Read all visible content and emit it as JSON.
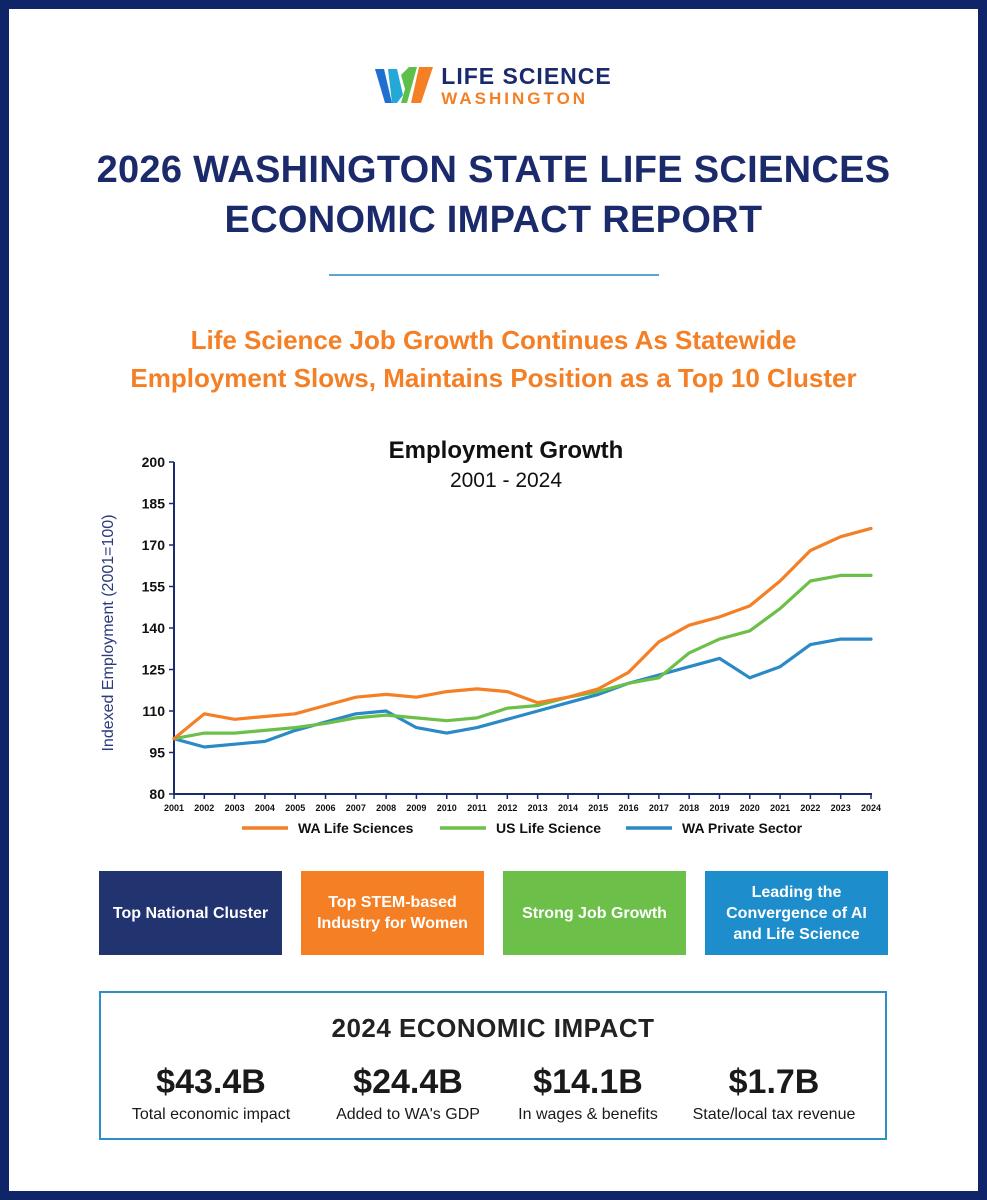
{
  "logo": {
    "line1": "LIFE SCIENCE",
    "line2": "WASHINGTON",
    "mark_colors": [
      "#1f6fd1",
      "#23a8d8",
      "#5cc04a",
      "#f47f24"
    ]
  },
  "report": {
    "title_line1": "2026 WASHINGTON STATE LIFE SCIENCES",
    "title_line2": "ECONOMIC IMPACT REPORT",
    "subtitle_line1": "Life Science Job Growth Continues As Statewide",
    "subtitle_line2": "Employment Slows, Maintains Position as a Top 10 Cluster"
  },
  "chart_data": {
    "type": "line",
    "title": "Employment Growth",
    "subtitle": "2001 - 2024",
    "xlabel": "",
    "ylabel": "Indexed Employment (2001=100)",
    "x": [
      "2001",
      "2002",
      "2003",
      "2004",
      "2005",
      "2006",
      "2007",
      "2008",
      "2009",
      "2010",
      "2011",
      "2012",
      "2013",
      "2014",
      "2015",
      "2016",
      "2017",
      "2018",
      "2019",
      "2020",
      "2021",
      "2022",
      "2023",
      "2024"
    ],
    "ylim": [
      80,
      200
    ],
    "yticks": [
      80,
      95,
      110,
      125,
      140,
      155,
      170,
      185,
      200
    ],
    "grid": false,
    "legend": "bottom",
    "series": [
      {
        "name": "WA Life Sciences",
        "color": "#f47f24",
        "values": [
          100,
          109,
          107,
          108,
          109,
          112,
          115,
          116,
          115,
          117,
          118,
          117,
          113,
          115,
          118,
          124,
          135,
          141,
          144,
          148,
          157,
          168,
          173,
          176
        ]
      },
      {
        "name": "US Life Science",
        "color": "#6cc04a",
        "values": [
          100,
          102,
          102,
          103,
          104,
          105.5,
          107.5,
          108.5,
          107.5,
          106.5,
          107.5,
          111,
          112,
          115,
          117,
          120,
          122,
          131,
          136,
          139,
          147,
          157,
          159,
          159
        ]
      },
      {
        "name": "WA Private Sector",
        "color": "#2b8ac6",
        "values": [
          100,
          97,
          98,
          99,
          103,
          106,
          109,
          110,
          104,
          102,
          104,
          107,
          110,
          113,
          116,
          120,
          123,
          126,
          129,
          122,
          126,
          134,
          136,
          136
        ]
      }
    ]
  },
  "badges": [
    {
      "text": "Top National Cluster",
      "color": "#22346f"
    },
    {
      "text": "Top STEM-based Industry for Women",
      "color": "#f47f24"
    },
    {
      "text": "Strong Job Growth",
      "color": "#6cc04a"
    },
    {
      "text": "Leading the Convergence of AI and Life Science",
      "color": "#1e8dcb"
    }
  ],
  "impact": {
    "title": "2024 ECONOMIC IMPACT",
    "metrics": [
      {
        "value": "$43.4B",
        "label": "Total economic impact"
      },
      {
        "value": "$24.4B",
        "label": "Added to WA's GDP"
      },
      {
        "value": "$14.1B",
        "label": "In wages & benefits"
      },
      {
        "value": "$1.7B",
        "label": "State/local tax revenue"
      }
    ]
  }
}
